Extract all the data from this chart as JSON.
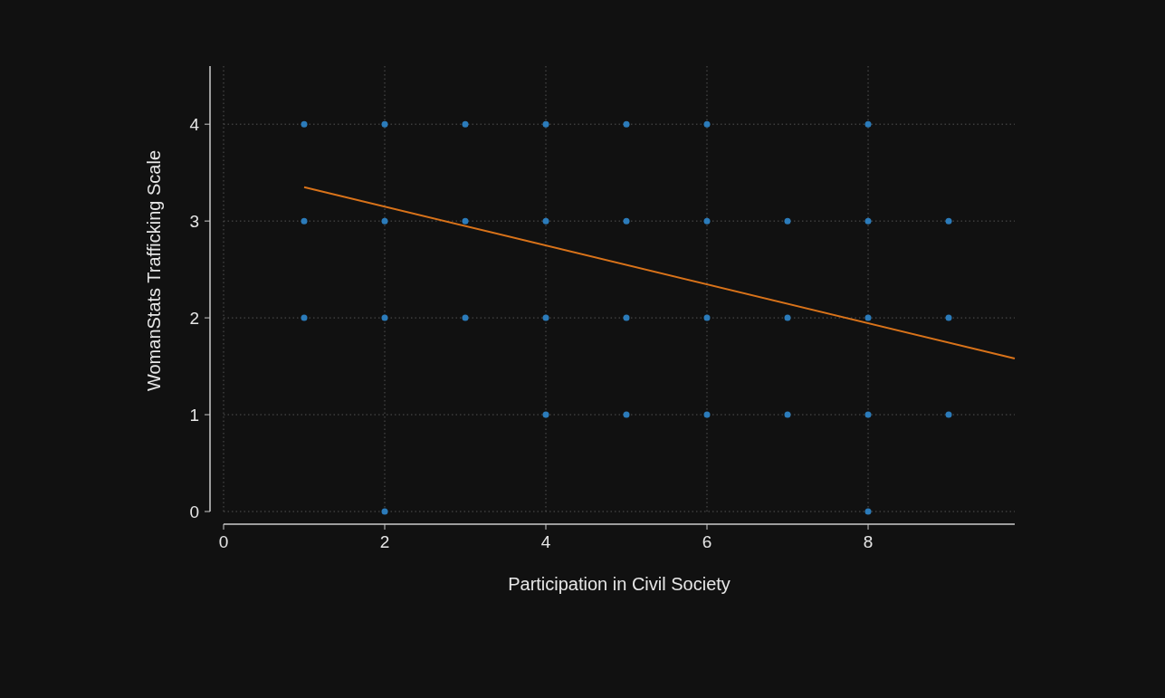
{
  "chart_data": {
    "type": "scatter",
    "xlabel": "Participation in Civil Society",
    "ylabel": "WomanStats Trafficking Scale",
    "xlim": [
      0,
      9.82
    ],
    "ylim": [
      0,
      4.6
    ],
    "xticks": [
      0,
      2,
      4,
      6,
      8
    ],
    "yticks": [
      0,
      1,
      2,
      3,
      4
    ],
    "grid": true,
    "marker": "circle",
    "series": [
      {
        "color": "#2b7bba",
        "x": [
          1,
          1,
          1,
          2,
          2,
          2,
          2,
          3,
          3,
          3,
          4,
          4,
          4,
          4,
          5,
          5,
          5,
          5,
          6,
          6,
          6,
          6,
          7,
          7,
          7,
          8,
          8,
          8,
          8,
          8,
          9,
          9,
          9
        ],
        "values": [
          4,
          3,
          2,
          4,
          3,
          2,
          0,
          4,
          3,
          2,
          4,
          3,
          2,
          1,
          4,
          3,
          2,
          1,
          4,
          3,
          2,
          1,
          3,
          2,
          1,
          4,
          3,
          2,
          1,
          0,
          3,
          2,
          1
        ]
      },
      {
        "type": "line",
        "color": "#d9731a",
        "x": [
          1,
          9.82
        ],
        "values": [
          3.35,
          1.58
        ],
        "marker": "none"
      }
    ]
  }
}
